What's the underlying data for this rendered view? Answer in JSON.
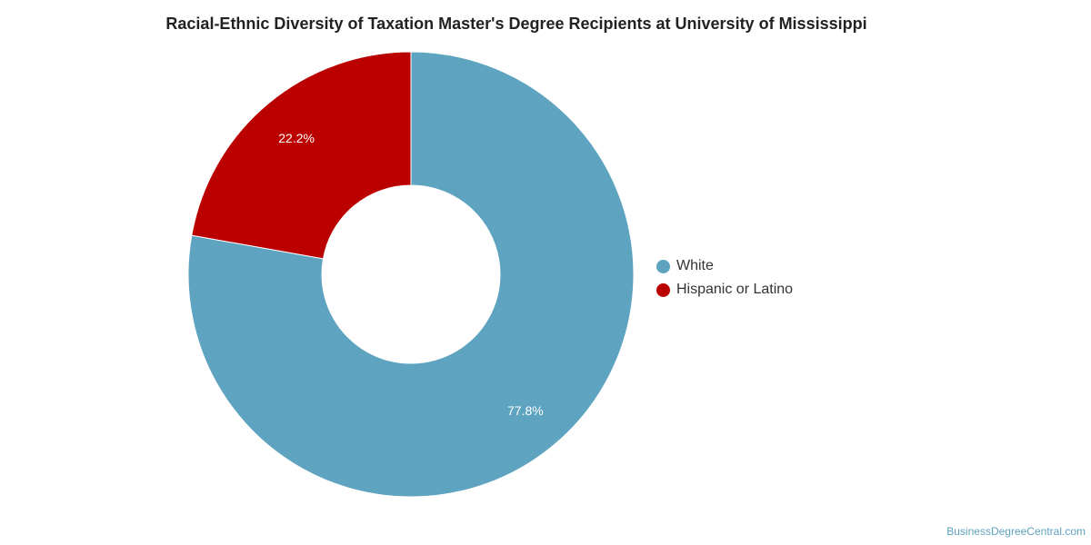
{
  "chart_data": {
    "type": "pie",
    "title": "Racial-Ethnic Diversity of Taxation Master's Degree Recipients at University of Mississippi",
    "legend_position": "right",
    "slices": [
      {
        "name": "White",
        "value": 77.8,
        "label": "77.8%",
        "color": "#5ea3bf"
      },
      {
        "name": "Hispanic or Latino",
        "value": 22.2,
        "label": "22.2%",
        "color": "#bb0000"
      }
    ]
  },
  "footer": {
    "source": "BusinessDegreeCentral.com"
  }
}
